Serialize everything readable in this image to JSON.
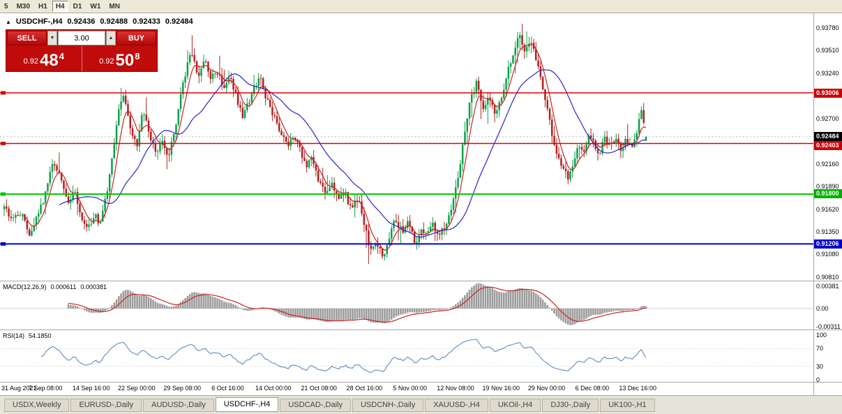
{
  "toolbar": {
    "periods": [
      "5",
      "M30",
      "H1",
      "H4",
      "D1",
      "W1",
      "MN"
    ],
    "active_period": "H4"
  },
  "chart": {
    "header": {
      "marker": "▲",
      "symbol": "USDCHF-,H4",
      "open": "0.92436",
      "high": "0.92488",
      "low": "0.92433",
      "close": "0.92484"
    },
    "trade_panel": {
      "sell_label": "SELL",
      "buy_label": "BUY",
      "volume": "3.00",
      "spin_down_glyph": "▼",
      "spin_up_glyph": "▲",
      "sell_price_prefix": "0.92",
      "sell_price_big": "48",
      "sell_price_sup": "4",
      "buy_price_prefix": "0.92",
      "buy_price_big": "50",
      "buy_price_sup": "8"
    }
  },
  "price_axis": {
    "ticks": [
      "0.93780",
      "0.93510",
      "0.93240",
      "0.92970",
      "0.92700",
      "0.92430",
      "0.92160",
      "0.91890",
      "0.91620",
      "0.91350",
      "0.91080",
      "0.90810"
    ],
    "boxes": [
      {
        "price": 0.93006,
        "label": "0.93006",
        "color": "#d00000"
      },
      {
        "price": 0.92484,
        "label": "0.92484",
        "color": "#000000"
      },
      {
        "price": 0.92403,
        "label": "0.92403",
        "color": "#d00000"
      },
      {
        "price": 0.918,
        "label": "0.91800",
        "color": "#00b000"
      },
      {
        "price": 0.91206,
        "label": "0.91206",
        "color": "#0000cc"
      }
    ]
  },
  "chart_data": {
    "type": "candlestick",
    "symbol": "USDCHF",
    "timeframe": "H4",
    "bars": 281,
    "up_color": "#0ca04a",
    "down_color": "#b22020",
    "ma_fast_color": "#cc2222",
    "ma_slow_color": "#2626c8",
    "bid_line": {
      "price": 0.92484,
      "color": "#b8b8b8"
    },
    "hlines": [
      {
        "price": 0.93006,
        "color": "#e00000",
        "width": 1.4
      },
      {
        "price": 0.92403,
        "color": "#e00000",
        "width": 1.4
      },
      {
        "price": 0.918,
        "color": "#00cc00",
        "width": 2
      },
      {
        "price": 0.91206,
        "color": "#0000dd",
        "width": 2
      }
    ],
    "last_bar": {
      "open": 0.92436,
      "high": 0.92488,
      "low": 0.92433,
      "close": 0.92484
    },
    "price_path_anchors": [
      [
        0.0,
        0.9162
      ],
      [
        0.015,
        0.915
      ],
      [
        0.03,
        0.9158
      ],
      [
        0.04,
        0.9129
      ],
      [
        0.05,
        0.915
      ],
      [
        0.062,
        0.9175
      ],
      [
        0.075,
        0.9218
      ],
      [
        0.088,
        0.92
      ],
      [
        0.1,
        0.9166
      ],
      [
        0.11,
        0.9184
      ],
      [
        0.12,
        0.9148
      ],
      [
        0.13,
        0.9136
      ],
      [
        0.14,
        0.9155
      ],
      [
        0.15,
        0.9146
      ],
      [
        0.16,
        0.918
      ],
      [
        0.17,
        0.923
      ],
      [
        0.18,
        0.9288
      ],
      [
        0.187,
        0.9301
      ],
      [
        0.196,
        0.9262
      ],
      [
        0.206,
        0.9236
      ],
      [
        0.216,
        0.9278
      ],
      [
        0.226,
        0.9252
      ],
      [
        0.236,
        0.9228
      ],
      [
        0.246,
        0.9242
      ],
      [
        0.256,
        0.9224
      ],
      [
        0.266,
        0.9256
      ],
      [
        0.276,
        0.93
      ],
      [
        0.286,
        0.9338
      ],
      [
        0.292,
        0.9352
      ],
      [
        0.302,
        0.9322
      ],
      [
        0.312,
        0.934
      ],
      [
        0.322,
        0.932
      ],
      [
        0.332,
        0.9326
      ],
      [
        0.342,
        0.9306
      ],
      [
        0.352,
        0.9318
      ],
      [
        0.362,
        0.9295
      ],
      [
        0.372,
        0.927
      ],
      [
        0.382,
        0.9292
      ],
      [
        0.392,
        0.9312
      ],
      [
        0.4,
        0.9316
      ],
      [
        0.412,
        0.9286
      ],
      [
        0.422,
        0.9268
      ],
      [
        0.432,
        0.9252
      ],
      [
        0.442,
        0.9236
      ],
      [
        0.452,
        0.925
      ],
      [
        0.462,
        0.923
      ],
      [
        0.472,
        0.9212
      ],
      [
        0.48,
        0.9224
      ],
      [
        0.49,
        0.9196
      ],
      [
        0.5,
        0.9181
      ],
      [
        0.51,
        0.9194
      ],
      [
        0.52,
        0.9172
      ],
      [
        0.53,
        0.9184
      ],
      [
        0.54,
        0.9162
      ],
      [
        0.552,
        0.9176
      ],
      [
        0.562,
        0.914
      ],
      [
        0.572,
        0.911
      ],
      [
        0.58,
        0.9126
      ],
      [
        0.59,
        0.9101
      ],
      [
        0.6,
        0.913
      ],
      [
        0.61,
        0.915
      ],
      [
        0.62,
        0.9136
      ],
      [
        0.63,
        0.9146
      ],
      [
        0.64,
        0.9121
      ],
      [
        0.65,
        0.914
      ],
      [
        0.658,
        0.9134
      ],
      [
        0.668,
        0.9146
      ],
      [
        0.676,
        0.9126
      ],
      [
        0.686,
        0.9141
      ],
      [
        0.696,
        0.9156
      ],
      [
        0.706,
        0.9196
      ],
      [
        0.716,
        0.9245
      ],
      [
        0.726,
        0.929
      ],
      [
        0.736,
        0.9312
      ],
      [
        0.746,
        0.9282
      ],
      [
        0.756,
        0.9296
      ],
      [
        0.766,
        0.9272
      ],
      [
        0.776,
        0.93
      ],
      [
        0.786,
        0.933
      ],
      [
        0.796,
        0.9356
      ],
      [
        0.803,
        0.9372
      ],
      [
        0.812,
        0.935
      ],
      [
        0.822,
        0.9364
      ],
      [
        0.832,
        0.933
      ],
      [
        0.842,
        0.9296
      ],
      [
        0.852,
        0.9258
      ],
      [
        0.862,
        0.9226
      ],
      [
        0.872,
        0.921
      ],
      [
        0.88,
        0.9196
      ],
      [
        0.888,
        0.9222
      ],
      [
        0.896,
        0.924
      ],
      [
        0.904,
        0.9226
      ],
      [
        0.912,
        0.9254
      ],
      [
        0.92,
        0.924
      ],
      [
        0.928,
        0.9226
      ],
      [
        0.936,
        0.925
      ],
      [
        0.944,
        0.9236
      ],
      [
        0.952,
        0.9248
      ],
      [
        0.96,
        0.923
      ],
      [
        0.968,
        0.9244
      ],
      [
        0.976,
        0.9238
      ],
      [
        0.984,
        0.9245
      ],
      [
        0.992,
        0.9282
      ],
      [
        1.0,
        0.92484
      ]
    ]
  },
  "macd": {
    "label": "MACD(12,26,9)",
    "value_main": "0.000611",
    "value_signal": "0.000381",
    "axis": [
      "0.00381",
      "0.00",
      "-0.00311"
    ],
    "hist_color": "#9c9c9c",
    "signal_color": "#cc2222"
  },
  "rsi": {
    "label": "RSI(14)",
    "value": "54.1850",
    "axis": [
      "100",
      "70",
      "30",
      "0"
    ],
    "levels": [
      70,
      30
    ],
    "line_color": "#4f81bd"
  },
  "time_axis": {
    "labels": [
      "31 Aug 2021",
      "7 Sep 08:00",
      "14 Sep 16:00",
      "22 Sep 00:00",
      "29 Sep 08:00",
      "6 Oct 16:00",
      "14 Oct 00:00",
      "21 Oct 08:00",
      "28 Oct 16:00",
      "5 Nov 00:00",
      "12 Nov 08:00",
      "19 Nov 16:00",
      "29 Nov 00:00",
      "6 Dec 08:00",
      "13 Dec 16:00"
    ]
  },
  "tabs": {
    "items": [
      "USDX,Weekly",
      "EURUSD-,Daily",
      "AUDUSD-,Daily",
      "USDCHF-,H4",
      "USDCAD-,Daily",
      "USDCNH-,Daily",
      "XAUUSD-,H4",
      "UKOil-,H4",
      "DJ30-,Daily",
      "UK100-,H1"
    ],
    "active_index": 3
  }
}
